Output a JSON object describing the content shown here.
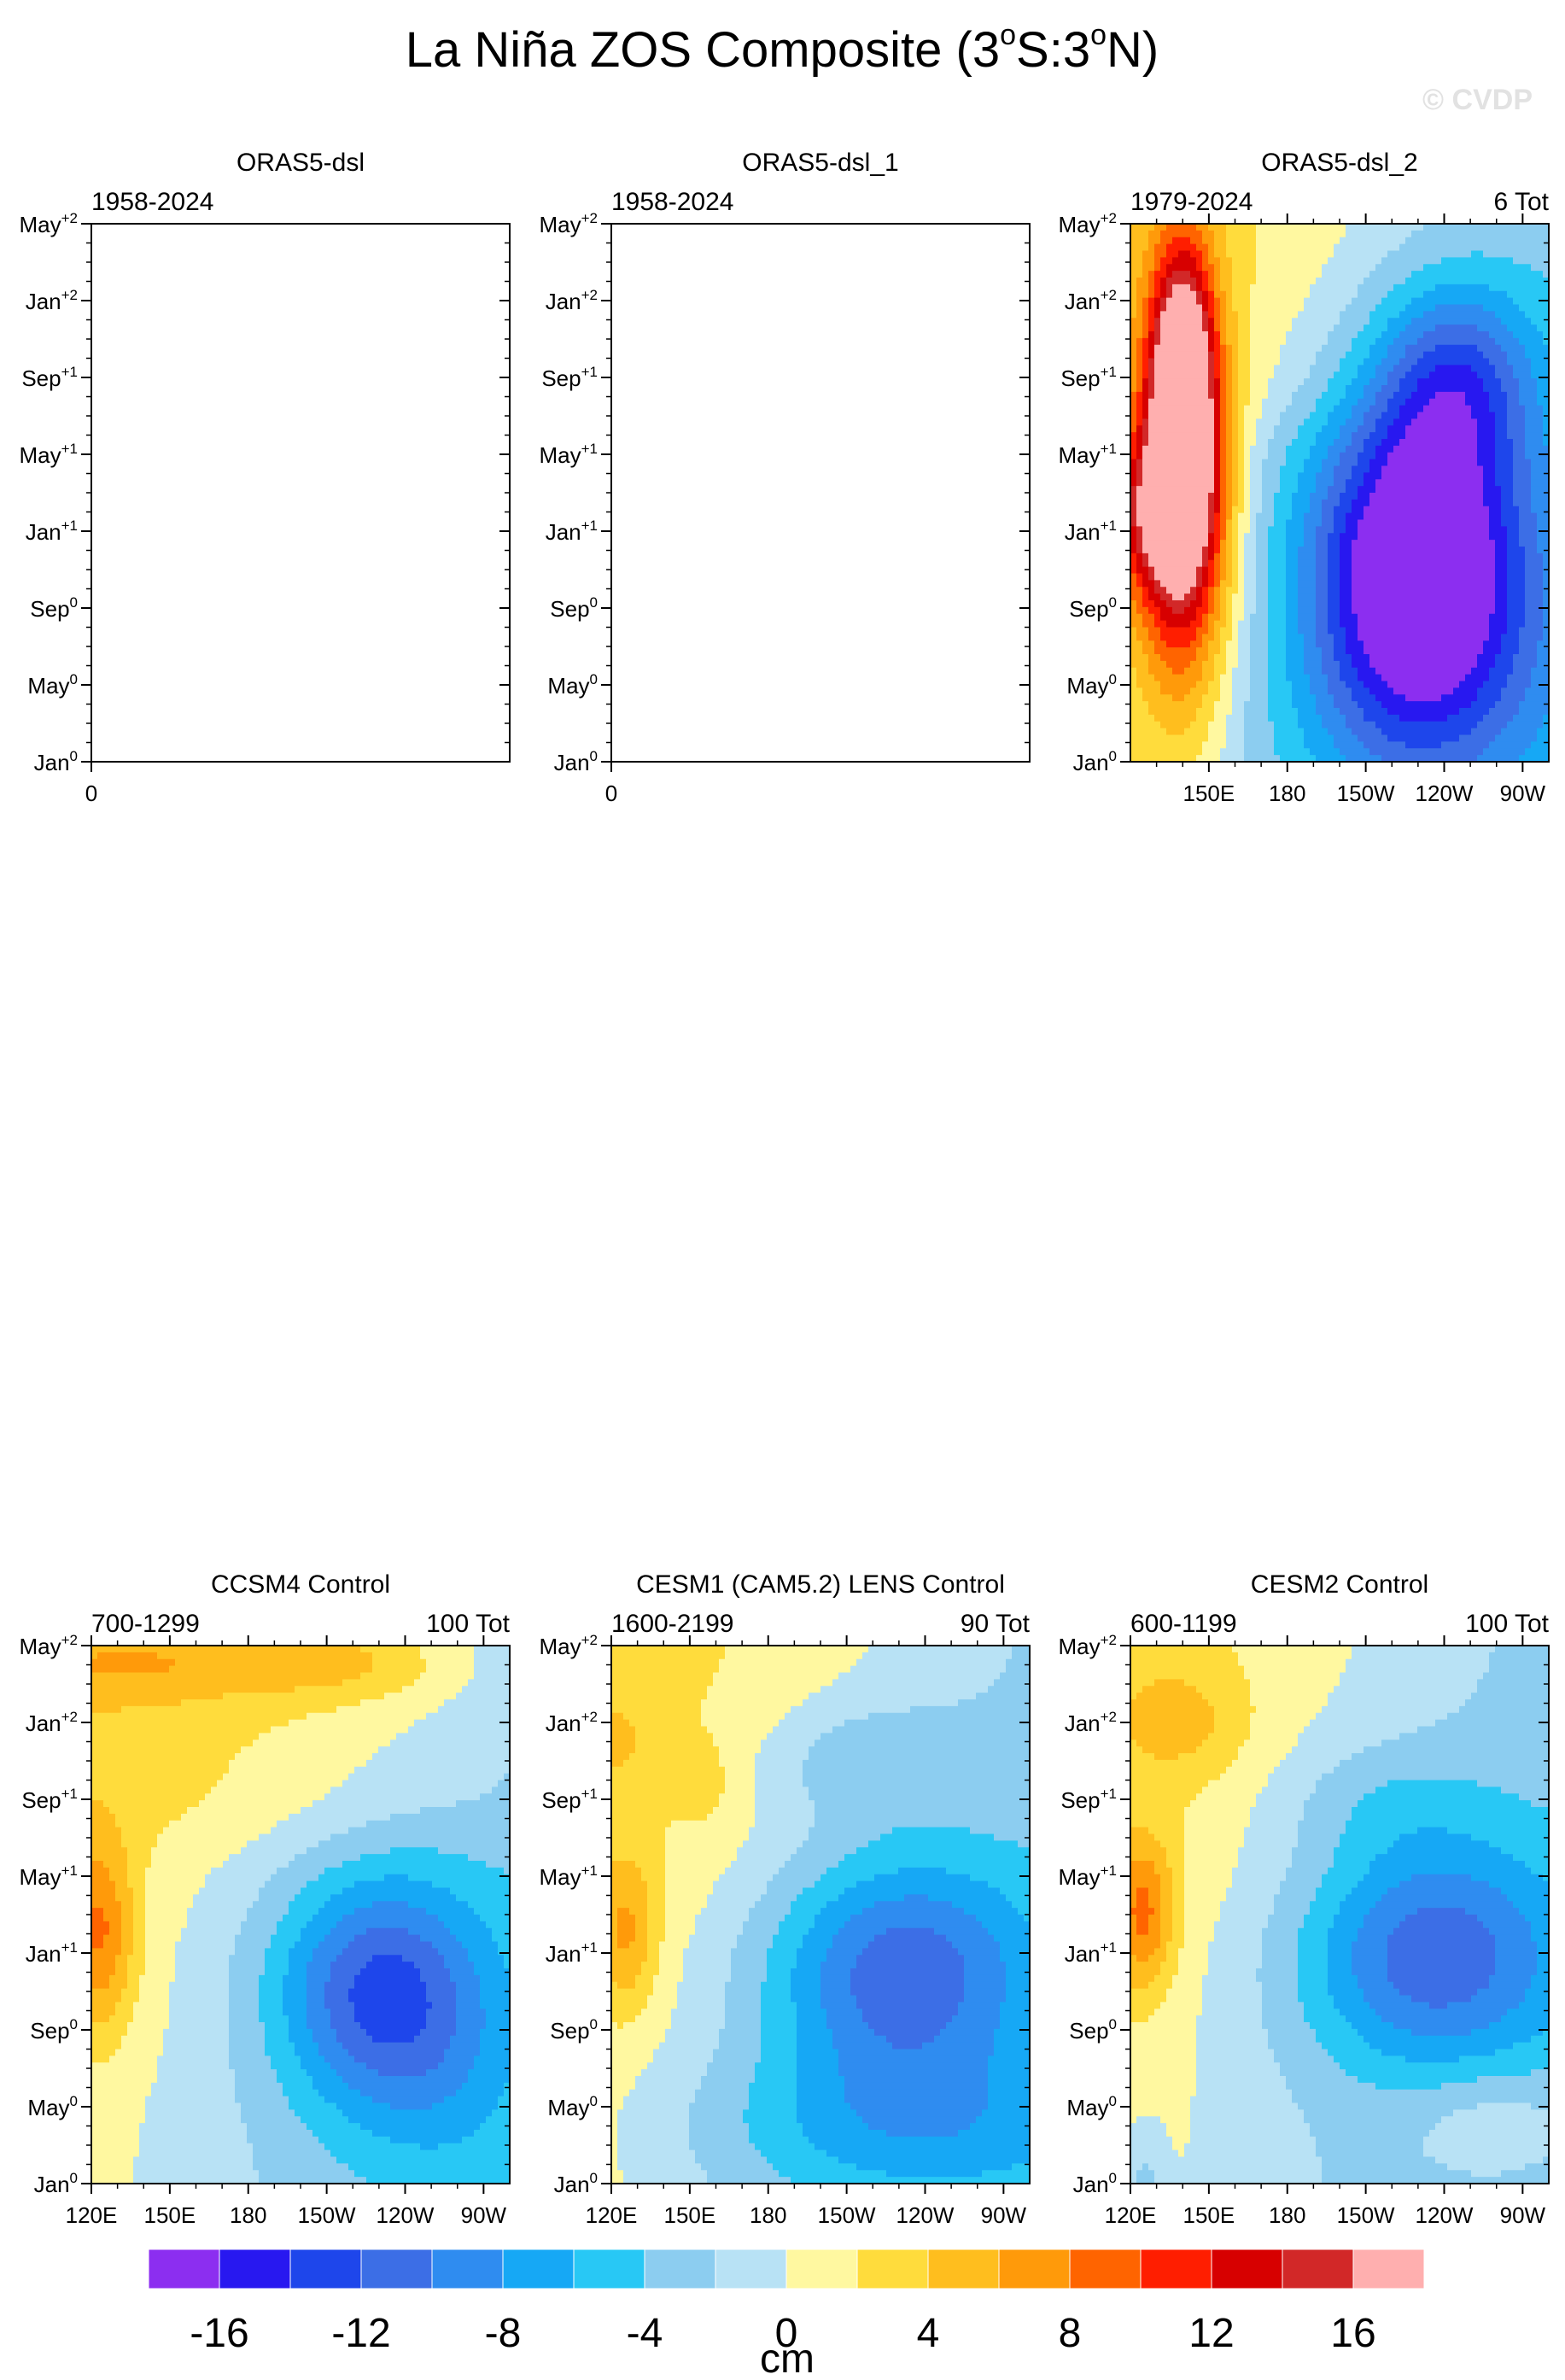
{
  "title_main": "La Niña ZOS Composite (3",
  "title_deg": "o",
  "title_mid": "S:3",
  "title_end": "N)",
  "watermark": "© CVDP",
  "units": "cm",
  "colors": {
    "bins": [
      "#8c2ef0",
      "#2818f0",
      "#1e46eb",
      "#3c6ee6",
      "#2f8cf0",
      "#16a8f5",
      "#28c8f5",
      "#8ccdf0",
      "#b8e2f5",
      "#fff8a0",
      "#ffdc3c",
      "#ffbe1e",
      "#ff9a0a",
      "#ff6400",
      "#ff1e00",
      "#d70000",
      "#d22828",
      "#ffafaf"
    ]
  },
  "chart_data": [
    {
      "type": "heatmap",
      "panel": "ORAS5-dsl",
      "title": "ORAS5-dsl",
      "left_label": "1958-2024",
      "right_label": "",
      "xticks": [
        "0"
      ],
      "yticks": [
        "Jan",
        "May",
        "Sep",
        "Jan",
        "May",
        "Sep",
        "Jan",
        "May"
      ],
      "ysup": [
        "0",
        "0",
        "0",
        "+1",
        "+1",
        "+1",
        "+2",
        "+2"
      ],
      "has_data": false
    },
    {
      "type": "heatmap",
      "panel": "ORAS5-dsl_1",
      "title": "ORAS5-dsl_1",
      "left_label": "1958-2024",
      "right_label": "",
      "xticks": [
        "0"
      ],
      "yticks": [
        "Jan",
        "May",
        "Sep",
        "Jan",
        "May",
        "Sep",
        "Jan",
        "May"
      ],
      "ysup": [
        "0",
        "0",
        "0",
        "+1",
        "+1",
        "+1",
        "+2",
        "+2"
      ],
      "has_data": false
    },
    {
      "type": "heatmap",
      "panel": "ORAS5-dsl_2",
      "title": "ORAS5-dsl_2",
      "left_label": "1979-2024",
      "right_label": "6 Tot",
      "xticks": [
        "150E",
        "180",
        "150W",
        "120W",
        "90W"
      ],
      "yticks": [
        "Jan",
        "May",
        "Sep",
        "Jan",
        "May",
        "Sep",
        "Jan",
        "May"
      ],
      "ysup": [
        "0",
        "0",
        "0",
        "+1",
        "+1",
        "+1",
        "+2",
        "+2"
      ],
      "has_data": true,
      "x_range": [
        120,
        280
      ],
      "field": {
        "warm": [
          [
            140,
            13,
            16,
            18,
            10
          ],
          [
            140,
            20,
            16,
            12,
            7
          ],
          [
            127,
            13,
            8,
            22,
            4
          ]
        ],
        "cold": [
          [
            230,
            10,
            -17,
            40,
            9
          ],
          [
            245,
            20,
            -8,
            30,
            5
          ],
          [
            225,
            5,
            -4,
            90,
            10
          ]
        ],
        "boundary": [
          [
            0,
            160
          ],
          [
            4,
            170
          ],
          [
            8,
            175
          ],
          [
            12,
            160
          ],
          [
            16,
            160
          ],
          [
            20,
            190
          ],
          [
            24,
            200
          ],
          [
            28,
            210
          ]
        ],
        "grad": 0.05
      }
    },
    {
      "type": "heatmap",
      "panel": "CCSM4 Control",
      "title": "CCSM4 Control",
      "left_label": "700-1299",
      "right_label": "100 Tot",
      "xticks": [
        "120E",
        "150E",
        "180",
        "150W",
        "120W",
        "90W"
      ],
      "yticks": [
        "Jan",
        "May",
        "Sep",
        "Jan",
        "May",
        "Sep",
        "Jan",
        "May"
      ],
      "ysup": [
        "0",
        "0",
        "0",
        "+1",
        "+1",
        "+1",
        "+2",
        "+2"
      ],
      "has_data": true,
      "x_range": [
        120,
        280
      ],
      "field": {
        "warm": [
          [
            123,
            13,
            7,
            14,
            5
          ],
          [
            140,
            27,
            3,
            60,
            2
          ],
          [
            220,
            27,
            3,
            40,
            2
          ]
        ],
        "cold": [
          [
            230,
            10,
            -10,
            40,
            6
          ],
          [
            255,
            5,
            -2,
            35,
            6
          ]
        ],
        "boundary": [
          [
            0,
            135
          ],
          [
            4,
            140
          ],
          [
            8,
            150
          ],
          [
            12,
            155
          ],
          [
            16,
            170
          ],
          [
            20,
            220
          ],
          [
            24,
            240
          ],
          [
            28,
            250
          ]
        ],
        "grad": 0.04
      }
    },
    {
      "type": "heatmap",
      "panel": "CESM1 (CAM5.2) LENS Control",
      "title": "CESM1 (CAM5.2) LENS Control",
      "left_label": "1600-2199",
      "right_label": "90 Tot",
      "xticks": [
        "120E",
        "150E",
        "180",
        "150W",
        "120W",
        "90W"
      ],
      "yticks": [
        "Jan",
        "May",
        "Sep",
        "Jan",
        "May",
        "Sep",
        "Jan",
        "May"
      ],
      "ysup": [
        "0",
        "0",
        "0",
        "+1",
        "+1",
        "+1",
        "+2",
        "+2"
      ],
      "has_data": true,
      "x_range": [
        120,
        280
      ],
      "field": {
        "warm": [
          [
            126,
            13,
            5,
            12,
            4
          ],
          [
            155,
            21,
            2,
            10,
            2
          ],
          [
            123,
            23,
            2,
            10,
            2
          ]
        ],
        "cold": [
          [
            230,
            11,
            -9,
            50,
            6
          ],
          [
            230,
            3,
            -4,
            80,
            4
          ],
          [
            215,
            22,
            -3,
            40,
            3
          ]
        ],
        "boundary": [
          [
            0,
            135
          ],
          [
            4,
            140
          ],
          [
            8,
            150
          ],
          [
            12,
            160
          ],
          [
            16,
            180
          ],
          [
            20,
            200
          ],
          [
            24,
            210
          ],
          [
            28,
            220
          ]
        ],
        "grad": 0.04
      }
    },
    {
      "type": "heatmap",
      "panel": "CESM2 Control",
      "title": "CESM2 Control",
      "left_label": "600-1199",
      "right_label": "100 Tot",
      "xticks": [
        "120E",
        "150E",
        "180",
        "150W",
        "120W",
        "90W"
      ],
      "yticks": [
        "Jan",
        "May",
        "Sep",
        "Jan",
        "May",
        "Sep",
        "Jan",
        "May"
      ],
      "ysup": [
        "0",
        "0",
        "0",
        "+1",
        "+1",
        "+1",
        "+2",
        "+2"
      ],
      "has_data": true,
      "x_range": [
        120,
        280
      ],
      "field": {
        "warm": [
          [
            125,
            14,
            7,
            12,
            4
          ],
          [
            140,
            24,
            3,
            25,
            3
          ],
          [
            260,
            3,
            3,
            35,
            3
          ]
        ],
        "cold": [
          [
            235,
            12,
            -9,
            50,
            6
          ],
          [
            215,
            20,
            -2,
            40,
            3
          ],
          [
            125,
            0,
            -3,
            8,
            3
          ]
        ],
        "boundary": [
          [
            0,
            140
          ],
          [
            4,
            145
          ],
          [
            8,
            150
          ],
          [
            12,
            160
          ],
          [
            16,
            175
          ],
          [
            20,
            185
          ],
          [
            24,
            195
          ],
          [
            28,
            205
          ]
        ],
        "grad": 0.04
      }
    }
  ],
  "colorbar": {
    "levels": [
      -16,
      -14,
      -12,
      -10,
      -8,
      -6,
      -4,
      -2,
      0,
      2,
      4,
      6,
      8,
      10,
      12,
      14,
      16
    ],
    "labels": [
      "-16",
      "-12",
      "-8",
      "-4",
      "0",
      "4",
      "8",
      "12",
      "16"
    ]
  }
}
